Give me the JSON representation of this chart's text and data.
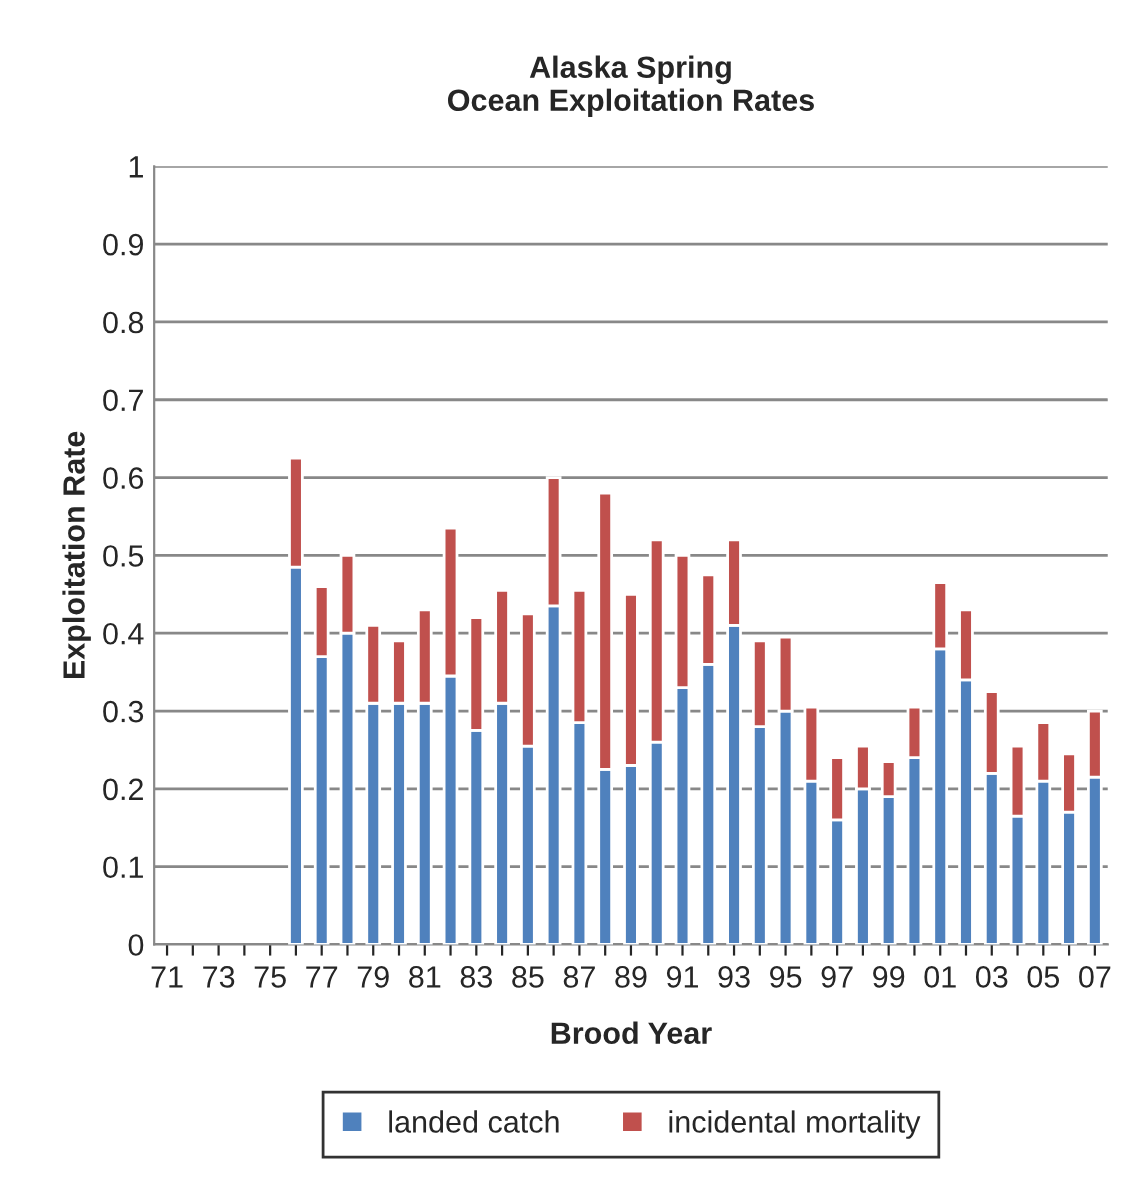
{
  "chart_data": {
    "type": "bar",
    "title": "Alaska Spring\nOcean Exploitation Rates",
    "xlabel": "Brood Year",
    "ylabel": "Exploitation Rate",
    "categories": [
      "71",
      null,
      "73",
      null,
      "75",
      null,
      "77",
      null,
      "79",
      null,
      "81",
      null,
      "83",
      null,
      "85",
      null,
      "87",
      null,
      "89",
      null,
      "91",
      null,
      "93",
      null,
      "95",
      null,
      "97",
      null,
      "99",
      null,
      "01",
      null,
      "03",
      null,
      "05",
      null,
      "07"
    ],
    "stacked": true,
    "series": [
      {
        "name": "landed catch",
        "color": "#4f81bd",
        "values": [
          null,
          null,
          null,
          null,
          null,
          0.485,
          0.37,
          0.4,
          0.31,
          0.31,
          0.31,
          0.345,
          0.275,
          0.31,
          0.255,
          0.435,
          0.285,
          0.225,
          0.23,
          0.26,
          0.33,
          0.36,
          0.41,
          0.28,
          0.3,
          0.21,
          0.16,
          0.2,
          0.19,
          0.24,
          0.38,
          0.34,
          0.22,
          0.165,
          0.21,
          0.17,
          0.215
        ]
      },
      {
        "name": "incidental mortality",
        "color": "#c0504d",
        "values": [
          null,
          null,
          null,
          null,
          null,
          0.14,
          0.09,
          0.1,
          0.1,
          0.08,
          0.12,
          0.19,
          0.145,
          0.145,
          0.17,
          0.165,
          0.17,
          0.355,
          0.22,
          0.26,
          0.17,
          0.115,
          0.11,
          0.11,
          0.095,
          0.095,
          0.08,
          0.055,
          0.045,
          0.065,
          0.085,
          0.09,
          0.105,
          0.09,
          0.075,
          0.075,
          0.085
        ]
      }
    ],
    "ylim": [
      0,
      1
    ],
    "yticks": [
      0,
      0.1,
      0.2,
      0.3,
      0.4,
      0.5,
      0.6,
      0.7,
      0.8,
      0.9,
      1
    ],
    "grid": "y",
    "legend": "bottom"
  }
}
